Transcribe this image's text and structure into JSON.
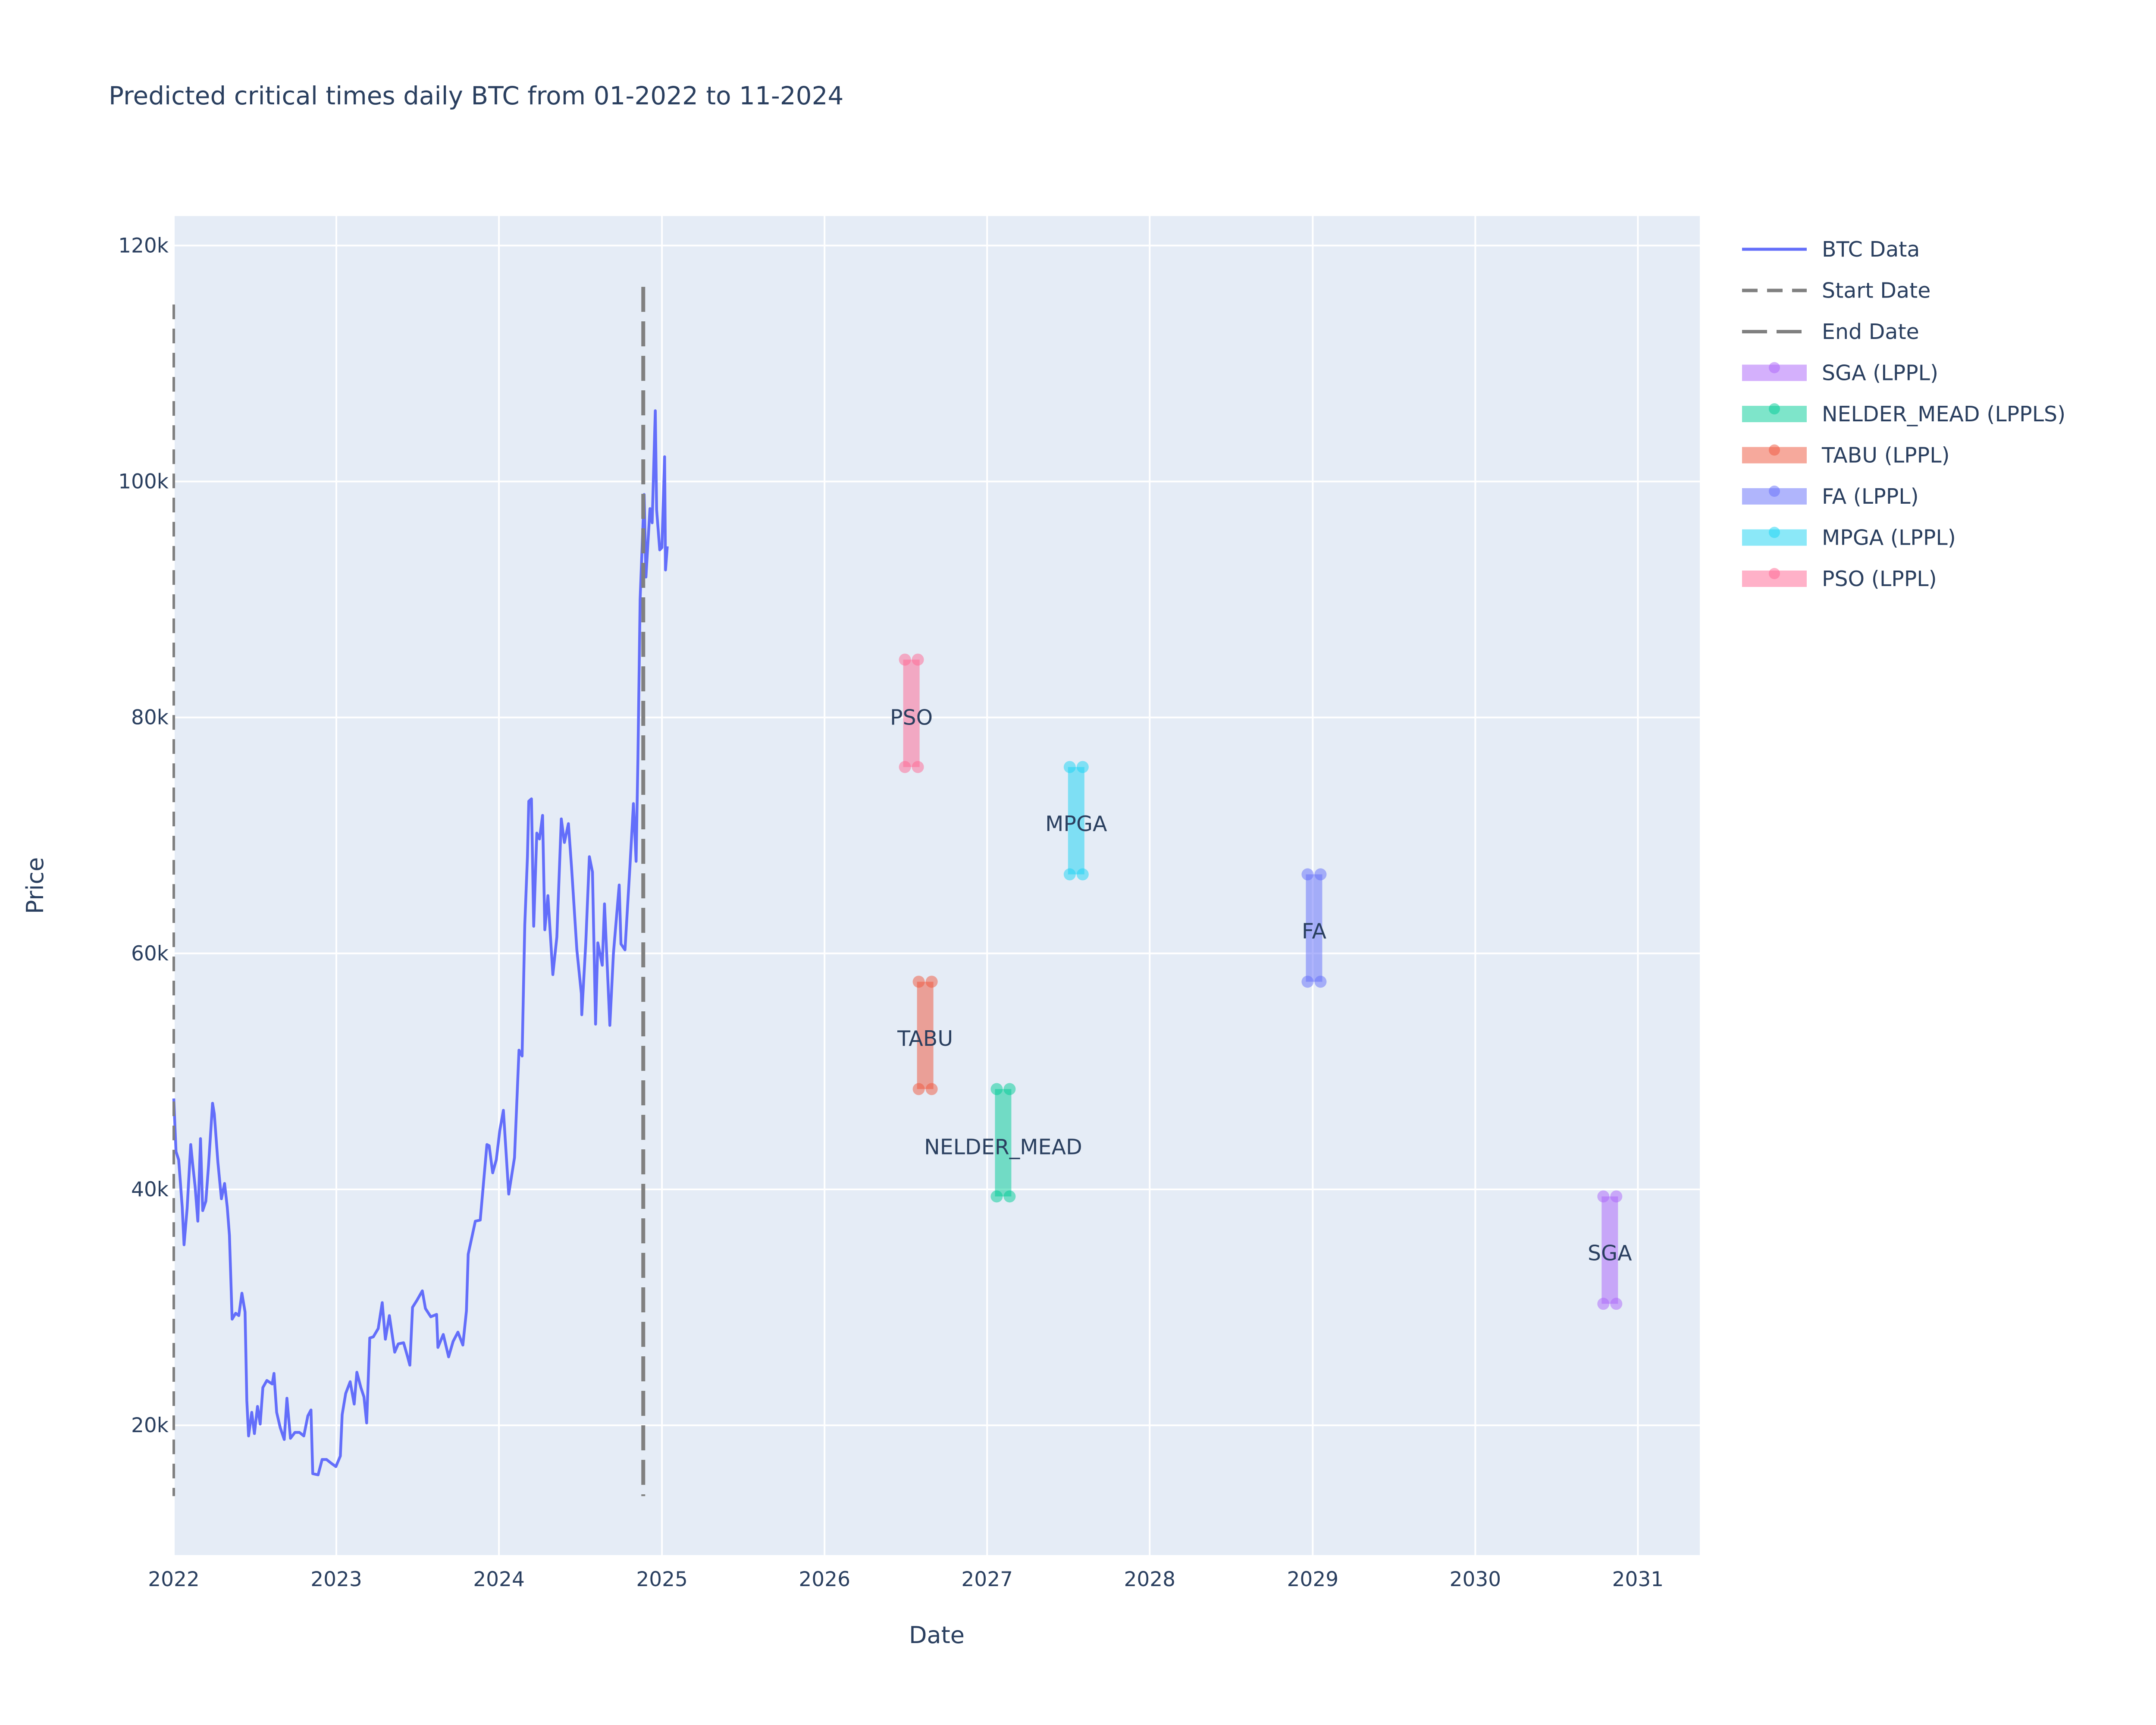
{
  "chart_data": {
    "type": "line",
    "title": "Predicted critical times daily BTC from 01-2022 to 11-2024",
    "xlabel": "Date",
    "ylabel": "Price",
    "xlim": [
      "2022-01-01",
      "2031-05-20"
    ],
    "ylim": [
      9000,
      122500
    ],
    "x_ticks": [
      "2022-01-01",
      "2023-01-01",
      "2024-01-01",
      "2025-01-01",
      "2026-01-01",
      "2027-01-01",
      "2028-01-01",
      "2029-01-01",
      "2030-01-01",
      "2031-01-01"
    ],
    "x_tick_labels": [
      "2022",
      "2023",
      "2024",
      "2025",
      "2026",
      "2027",
      "2028",
      "2029",
      "2030",
      "2031"
    ],
    "y_ticks": [
      20000,
      40000,
      60000,
      80000,
      100000,
      120000
    ],
    "y_tick_labels": [
      "20k",
      "40k",
      "60k",
      "80k",
      "100k",
      "120k"
    ],
    "grid": true,
    "legend_position": "right",
    "series": [
      {
        "name": "BTC Data",
        "kind": "line",
        "color": "#636efa",
        "points": [
          [
            "2022-01-01",
            47700
          ],
          [
            "2022-01-06",
            43200
          ],
          [
            "2022-01-12",
            42500
          ],
          [
            "2022-01-20",
            38500
          ],
          [
            "2022-01-24",
            35300
          ],
          [
            "2022-01-31",
            38400
          ],
          [
            "2022-02-08",
            43800
          ],
          [
            "2022-02-12",
            42300
          ],
          [
            "2022-02-18",
            40200
          ],
          [
            "2022-02-24",
            37300
          ],
          [
            "2022-03-02",
            44300
          ],
          [
            "2022-03-07",
            38200
          ],
          [
            "2022-03-14",
            39000
          ],
          [
            "2022-03-20",
            42000
          ],
          [
            "2022-03-29",
            47300
          ],
          [
            "2022-04-02",
            46400
          ],
          [
            "2022-04-10",
            42300
          ],
          [
            "2022-04-18",
            39200
          ],
          [
            "2022-04-25",
            40500
          ],
          [
            "2022-05-01",
            38500
          ],
          [
            "2022-05-06",
            36100
          ],
          [
            "2022-05-12",
            29000
          ],
          [
            "2022-05-20",
            29500
          ],
          [
            "2022-05-27",
            29300
          ],
          [
            "2022-06-03",
            31200
          ],
          [
            "2022-06-10",
            29600
          ],
          [
            "2022-06-14",
            22100
          ],
          [
            "2022-06-18",
            19100
          ],
          [
            "2022-06-25",
            21100
          ],
          [
            "2022-07-01",
            19300
          ],
          [
            "2022-07-08",
            21600
          ],
          [
            "2022-07-14",
            20100
          ],
          [
            "2022-07-20",
            23200
          ],
          [
            "2022-07-29",
            23800
          ],
          [
            "2022-08-10",
            23500
          ],
          [
            "2022-08-14",
            24400
          ],
          [
            "2022-08-20",
            21100
          ],
          [
            "2022-08-28",
            19800
          ],
          [
            "2022-09-06",
            18800
          ],
          [
            "2022-09-12",
            22300
          ],
          [
            "2022-09-20",
            18900
          ],
          [
            "2022-09-30",
            19400
          ],
          [
            "2022-10-10",
            19400
          ],
          [
            "2022-10-20",
            19100
          ],
          [
            "2022-10-29",
            20800
          ],
          [
            "2022-11-05",
            21300
          ],
          [
            "2022-11-09",
            15900
          ],
          [
            "2022-11-21",
            15800
          ],
          [
            "2022-11-30",
            17100
          ],
          [
            "2022-12-10",
            17100
          ],
          [
            "2022-12-20",
            16800
          ],
          [
            "2022-12-31",
            16500
          ],
          [
            "2023-01-10",
            17400
          ],
          [
            "2023-01-14",
            20900
          ],
          [
            "2023-01-22",
            22700
          ],
          [
            "2023-02-01",
            23700
          ],
          [
            "2023-02-10",
            21800
          ],
          [
            "2023-02-16",
            24500
          ],
          [
            "2023-02-25",
            23200
          ],
          [
            "2023-03-04",
            22400
          ],
          [
            "2023-03-10",
            20200
          ],
          [
            "2023-03-17",
            27400
          ],
          [
            "2023-03-25",
            27500
          ],
          [
            "2023-04-05",
            28200
          ],
          [
            "2023-04-14",
            30400
          ],
          [
            "2023-04-21",
            27300
          ],
          [
            "2023-04-30",
            29300
          ],
          [
            "2023-05-12",
            26200
          ],
          [
            "2023-05-20",
            26900
          ],
          [
            "2023-06-01",
            27000
          ],
          [
            "2023-06-10",
            25800
          ],
          [
            "2023-06-15",
            25100
          ],
          [
            "2023-06-21",
            30000
          ],
          [
            "2023-07-01",
            30600
          ],
          [
            "2023-07-13",
            31400
          ],
          [
            "2023-07-20",
            29900
          ],
          [
            "2023-08-01",
            29200
          ],
          [
            "2023-08-14",
            29400
          ],
          [
            "2023-08-17",
            26600
          ],
          [
            "2023-08-29",
            27700
          ],
          [
            "2023-09-10",
            25800
          ],
          [
            "2023-09-20",
            27100
          ],
          [
            "2023-10-01",
            27900
          ],
          [
            "2023-10-12",
            26800
          ],
          [
            "2023-10-20",
            29700
          ],
          [
            "2023-10-24",
            34500
          ],
          [
            "2023-11-09",
            37300
          ],
          [
            "2023-11-20",
            37400
          ],
          [
            "2023-12-05",
            43800
          ],
          [
            "2023-12-10",
            43700
          ],
          [
            "2023-12-18",
            41400
          ],
          [
            "2023-12-26",
            42500
          ],
          [
            "2024-01-03",
            45000
          ],
          [
            "2024-01-11",
            46700
          ],
          [
            "2024-01-23",
            39600
          ],
          [
            "2024-02-05",
            42700
          ],
          [
            "2024-02-15",
            51800
          ],
          [
            "2024-02-22",
            51300
          ],
          [
            "2024-02-28",
            62400
          ],
          [
            "2024-03-05",
            68200
          ],
          [
            "2024-03-08",
            72900
          ],
          [
            "2024-03-14",
            73100
          ],
          [
            "2024-03-19",
            62300
          ],
          [
            "2024-03-26",
            70200
          ],
          [
            "2024-04-01",
            69700
          ],
          [
            "2024-04-08",
            71700
          ],
          [
            "2024-04-13",
            62000
          ],
          [
            "2024-04-20",
            64900
          ],
          [
            "2024-05-01",
            58200
          ],
          [
            "2024-05-10",
            61400
          ],
          [
            "2024-05-20",
            71400
          ],
          [
            "2024-05-27",
            69400
          ],
          [
            "2024-06-05",
            71000
          ],
          [
            "2024-06-12",
            67300
          ],
          [
            "2024-06-24",
            60300
          ],
          [
            "2024-07-04",
            56600
          ],
          [
            "2024-07-05",
            54800
          ],
          [
            "2024-07-14",
            60900
          ],
          [
            "2024-07-22",
            68200
          ],
          [
            "2024-07-29",
            66900
          ],
          [
            "2024-08-05",
            54000
          ],
          [
            "2024-08-10",
            60900
          ],
          [
            "2024-08-20",
            59000
          ],
          [
            "2024-08-25",
            64200
          ],
          [
            "2024-09-06",
            53900
          ],
          [
            "2024-09-14",
            60000
          ],
          [
            "2024-09-27",
            65800
          ],
          [
            "2024-10-01",
            60800
          ],
          [
            "2024-10-10",
            60300
          ],
          [
            "2024-10-21",
            67300
          ],
          [
            "2024-10-29",
            72700
          ],
          [
            "2024-11-04",
            67800
          ],
          [
            "2024-11-08",
            76500
          ],
          [
            "2024-11-13",
            90000
          ],
          [
            "2024-11-22",
            98900
          ],
          [
            "2024-11-26",
            91900
          ],
          [
            "2024-12-05",
            97700
          ],
          [
            "2024-12-10",
            96500
          ],
          [
            "2024-12-17",
            106000
          ],
          [
            "2024-12-20",
            97600
          ],
          [
            "2024-12-27",
            94200
          ],
          [
            "2025-01-01",
            94400
          ],
          [
            "2025-01-07",
            102100
          ],
          [
            "2025-01-09",
            92500
          ],
          [
            "2025-01-13",
            94500
          ]
        ]
      },
      {
        "name": "Start Date",
        "kind": "vline",
        "dash": "dash",
        "color": "#808080",
        "x": "2022-01-01",
        "y_range": [
          14000,
          115000
        ]
      },
      {
        "name": "End Date",
        "kind": "vline",
        "dash": "longdash",
        "color": "#808080",
        "x": "2024-11-20",
        "y_range": [
          14000,
          116500
        ]
      },
      {
        "name": "SGA (LPPL)",
        "kind": "range",
        "color": "#ab63fa",
        "label": "SGA",
        "x": "2030-10-30",
        "y_range": [
          30300,
          39400
        ],
        "label_y": 34600
      },
      {
        "name": "NELDER_MEAD (LPPLS)",
        "kind": "range",
        "color": "#00cc96",
        "label": "NELDER_MEAD",
        "x": "2027-02-06",
        "y_range": [
          39400,
          48500
        ],
        "label_y": 43600
      },
      {
        "name": "TABU (LPPL)",
        "kind": "range",
        "color": "#ef553b",
        "label": "TABU",
        "x": "2026-08-15",
        "y_range": [
          48500,
          57600
        ],
        "label_y": 52800
      },
      {
        "name": "FA (LPPL)",
        "kind": "range",
        "color": "#636efa",
        "label": "FA",
        "x": "2029-01-04",
        "y_range": [
          57600,
          66700
        ],
        "label_y": 61900
      },
      {
        "name": "MPGA (LPPL)",
        "kind": "range",
        "color": "#19d3f3",
        "label": "MPGA",
        "x": "2027-07-20",
        "y_range": [
          66700,
          75800
        ],
        "label_y": 71000
      },
      {
        "name": "PSO (LPPL)",
        "kind": "range",
        "color": "#ff6692",
        "label": "PSO",
        "x": "2026-07-15",
        "y_range": [
          75800,
          84900
        ],
        "label_y": 80000
      }
    ]
  }
}
